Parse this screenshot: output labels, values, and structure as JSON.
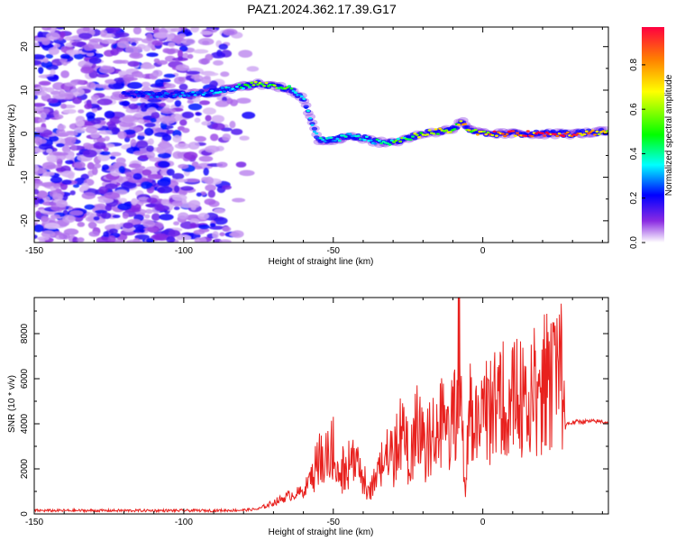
{
  "figure": {
    "title": "PAZ1.2024.362.17.39.G17"
  },
  "chart_data": [
    {
      "type": "heatmap",
      "title": "PAZ1.2024.362.17.39.G17",
      "xlabel": "Height of straight line (km)",
      "ylabel": "Frequency (Hz)",
      "xlim": [
        -150,
        42
      ],
      "ylim": [
        -25,
        24.5
      ],
      "x_ticks": [
        -150,
        -100,
        -50,
        0
      ],
      "y_ticks": [
        -20,
        -10,
        0,
        10,
        20
      ],
      "colorbar": {
        "label": "Normalized spectral amplitude",
        "range": [
          0,
          0.97
        ],
        "ticks": [
          0.0,
          0.2,
          0.4,
          0.6,
          0.8
        ],
        "tick_labels": [
          "0.0",
          "0.2",
          "0.4",
          "0.6",
          "0.8"
        ],
        "colormap": [
          "#ffffff",
          "#8a2be2",
          "#0000ff",
          "#00ffff",
          "#00ff00",
          "#ffff00",
          "#ff0000"
        ]
      },
      "ridge": {
        "x": [
          -120,
          -110,
          -100,
          -90,
          -80,
          -75,
          -70,
          -65,
          -60,
          -57,
          -55,
          -50,
          -45,
          -40,
          -35,
          -30,
          -25,
          -20,
          -15,
          -10,
          -7,
          -5,
          0,
          10,
          20,
          30,
          42
        ],
        "frequency": [
          9,
          9,
          9,
          9.5,
          11,
          11.5,
          11,
          10.5,
          8,
          2,
          -1.5,
          -1.5,
          -0.5,
          -1,
          -2,
          -2,
          -1,
          0,
          0.5,
          1,
          3,
          1,
          0,
          0,
          0,
          0,
          0.5
        ],
        "amplitude": [
          0.2,
          0.25,
          0.25,
          0.3,
          0.4,
          0.55,
          0.55,
          0.5,
          0.3,
          0.3,
          0.35,
          0.35,
          0.35,
          0.35,
          0.4,
          0.45,
          0.55,
          0.65,
          0.7,
          0.6,
          0.7,
          0.65,
          0.75,
          0.9,
          0.9,
          0.9,
          0.6
        ]
      },
      "noise_extent_x": [
        -150,
        -75
      ]
    },
    {
      "type": "line",
      "xlabel": "Height of straight line (km)",
      "ylabel": "SNR (10 * v/v)",
      "xlim": [
        -150,
        42
      ],
      "ylim": [
        0,
        9600
      ],
      "x_ticks": [
        -150,
        -100,
        -50,
        0
      ],
      "y_ticks": [
        0,
        2000,
        4000,
        6000,
        8000
      ],
      "color": "#e8211e",
      "series": [
        {
          "x": [
            -150,
            -140,
            -130,
            -120,
            -110,
            -100,
            -90,
            -80,
            -75,
            -70,
            -65,
            -60,
            -57,
            -55,
            -53,
            -50,
            -48,
            -45,
            -42,
            -40,
            -37,
            -35,
            -32,
            -30,
            -28,
            -25,
            -22,
            -20,
            -18,
            -16,
            -14,
            -12,
            -10,
            -8.5,
            -8,
            -7.5,
            -6,
            -4,
            -2,
            0,
            3,
            6,
            9,
            12,
            15,
            18,
            21,
            24,
            26,
            27,
            27.5,
            28,
            32,
            36,
            40,
            42
          ],
          "y": [
            150,
            150,
            150,
            150,
            150,
            150,
            150,
            170,
            220,
            500,
            800,
            1000,
            1800,
            2400,
            2800,
            3000,
            1800,
            2300,
            2000,
            1500,
            1200,
            1600,
            3000,
            2300,
            3600,
            2600,
            4000,
            3000,
            3300,
            3400,
            4300,
            3400,
            4500,
            3800,
            9500,
            5000,
            1200,
            4800,
            3800,
            4300,
            4800,
            5000,
            5000,
            5300,
            5200,
            5600,
            5800,
            6000,
            6200,
            6300,
            3800,
            4000,
            4100,
            4100,
            4100,
            4050
          ]
        }
      ]
    }
  ],
  "colors": {
    "line": "#e8211e",
    "axis": "#000000",
    "background": "#ffffff"
  }
}
